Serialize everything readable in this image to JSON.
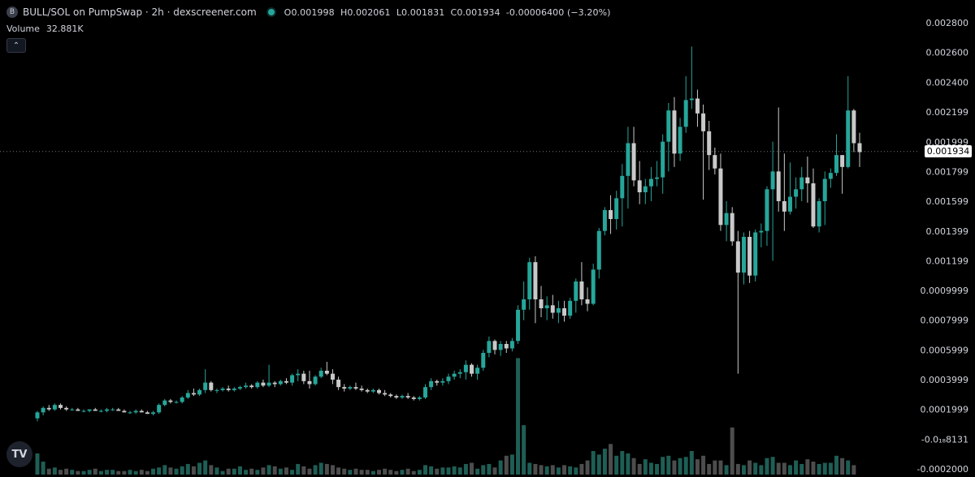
{
  "header": {
    "logo_letter": "B",
    "title": "BULL/SOL on PumpSwap · 2h · dexscreener.com",
    "o_label": "O",
    "o_value": "0.001998",
    "h_label": "H",
    "h_value": "0.002061",
    "l_label": "L",
    "l_value": "0.001831",
    "c_label": "C",
    "c_value": "0.001934",
    "change": "-0.00006400 (−3.20%)"
  },
  "volume": {
    "label": "Volume",
    "value": "32.881K"
  },
  "collapse_icon": "chevron-up-icon",
  "tv_logo_text": "TV",
  "colors": {
    "up": "#26a69a",
    "down": "#c9c9c9",
    "volume_up": "#1e5e55",
    "volume_down": "#4d4d4d",
    "background": "#000000"
  },
  "chart_data": {
    "type": "candlestick",
    "pair": "BULL/SOL",
    "interval": "2h",
    "ylim": [
      -0.0002,
      0.0028
    ],
    "y_ticks": [
      "0.002800",
      "0.002600",
      "0.002400",
      "0.002199",
      "0.001999",
      "0.001799",
      "0.001599",
      "0.001399",
      "0.001199",
      "0.0009999",
      "0.0007999",
      "0.0005999",
      "0.0003999",
      "0.0001999",
      "-0.0₁₈8131",
      "-0.0002000"
    ],
    "y_tick_values": [
      0.0028,
      0.0026,
      0.0024,
      0.002199,
      0.001999,
      0.001799,
      0.001599,
      0.001399,
      0.001199,
      0.0009999,
      0.0007999,
      0.0005999,
      0.0003999,
      0.0001999,
      0.0,
      -0.0002
    ],
    "last_price": 0.001934,
    "last_price_label": "0.001934",
    "candles": [
      [
        0.00014,
        0.00019,
        0.00012,
        0.00018
      ],
      [
        0.00018,
        0.00022,
        0.00016,
        0.00021
      ],
      [
        0.00021,
        0.00023,
        0.00019,
        0.0002
      ],
      [
        0.0002,
        0.00024,
        0.00019,
        0.00023
      ],
      [
        0.00023,
        0.00024,
        0.0002,
        0.00021
      ],
      [
        0.00021,
        0.00022,
        0.00019,
        0.0002
      ],
      [
        0.0002,
        0.00021,
        0.00019,
        0.0002
      ],
      [
        0.0002,
        0.00021,
        0.00019,
        0.00019
      ],
      [
        0.00019,
        0.0002,
        0.00018,
        0.00019
      ],
      [
        0.00019,
        0.0002,
        0.00018,
        0.0002
      ],
      [
        0.0002,
        0.00021,
        0.00019,
        0.00019
      ],
      [
        0.00019,
        0.0002,
        0.00018,
        0.00019
      ],
      [
        0.00019,
        0.00021,
        0.00018,
        0.0002
      ],
      [
        0.0002,
        0.00021,
        0.00019,
        0.0002
      ],
      [
        0.0002,
        0.00021,
        0.00019,
        0.00019
      ],
      [
        0.00019,
        0.0002,
        0.00018,
        0.00018
      ],
      [
        0.00018,
        0.00019,
        0.00017,
        0.00018
      ],
      [
        0.00018,
        0.0002,
        0.00017,
        0.00019
      ],
      [
        0.00019,
        0.0002,
        0.00018,
        0.00018
      ],
      [
        0.00018,
        0.00019,
        0.00017,
        0.00017
      ],
      [
        0.00017,
        0.00019,
        0.00016,
        0.00018
      ],
      [
        0.00018,
        0.00024,
        0.00017,
        0.00023
      ],
      [
        0.00023,
        0.00027,
        0.00022,
        0.00026
      ],
      [
        0.00026,
        0.00027,
        0.00024,
        0.00025
      ],
      [
        0.00025,
        0.00026,
        0.00024,
        0.00025
      ],
      [
        0.00025,
        0.00029,
        0.00024,
        0.00028
      ],
      [
        0.00028,
        0.00033,
        0.00027,
        0.00031
      ],
      [
        0.00031,
        0.00034,
        0.00029,
        0.0003
      ],
      [
        0.0003,
        0.00034,
        0.00029,
        0.00033
      ],
      [
        0.00033,
        0.00047,
        0.00031,
        0.00038
      ],
      [
        0.00038,
        0.00039,
        0.00032,
        0.00033
      ],
      [
        0.00033,
        0.00034,
        0.00031,
        0.00033
      ],
      [
        0.00033,
        0.00035,
        0.00032,
        0.00034
      ],
      [
        0.00034,
        0.00036,
        0.00032,
        0.00033
      ],
      [
        0.00033,
        0.00035,
        0.00032,
        0.00034
      ],
      [
        0.00034,
        0.00036,
        0.00033,
        0.00035
      ],
      [
        0.00035,
        0.00038,
        0.00034,
        0.00036
      ],
      [
        0.00036,
        0.00037,
        0.00034,
        0.00035
      ],
      [
        0.00035,
        0.00039,
        0.00034,
        0.00038
      ],
      [
        0.00038,
        0.0004,
        0.00035,
        0.00036
      ],
      [
        0.00036,
        0.0005,
        0.00035,
        0.00038
      ],
      [
        0.00038,
        0.00039,
        0.00035,
        0.00037
      ],
      [
        0.00037,
        0.0004,
        0.00036,
        0.00039
      ],
      [
        0.00039,
        0.00041,
        0.00037,
        0.00038
      ],
      [
        0.00038,
        0.00044,
        0.00036,
        0.00043
      ],
      [
        0.00043,
        0.00047,
        0.00039,
        0.00044
      ],
      [
        0.00044,
        0.00046,
        0.00037,
        0.00039
      ],
      [
        0.00039,
        0.00046,
        0.00034,
        0.00037
      ],
      [
        0.00037,
        0.00043,
        0.00036,
        0.00042
      ],
      [
        0.00042,
        0.00048,
        0.00041,
        0.00046
      ],
      [
        0.00046,
        0.00052,
        0.00043,
        0.00044
      ],
      [
        0.00044,
        0.00047,
        0.00037,
        0.0004
      ],
      [
        0.0004,
        0.00042,
        0.00033,
        0.00035
      ],
      [
        0.00035,
        0.00037,
        0.00032,
        0.00034
      ],
      [
        0.00034,
        0.00036,
        0.00033,
        0.00035
      ],
      [
        0.00035,
        0.00038,
        0.00033,
        0.00034
      ],
      [
        0.00034,
        0.00036,
        0.00032,
        0.00033
      ],
      [
        0.00033,
        0.00034,
        0.00031,
        0.00032
      ],
      [
        0.00032,
        0.00034,
        0.00031,
        0.00033
      ],
      [
        0.00033,
        0.00034,
        0.0003,
        0.00031
      ],
      [
        0.00031,
        0.00033,
        0.00029,
        0.0003
      ],
      [
        0.0003,
        0.00031,
        0.00028,
        0.00029
      ],
      [
        0.00029,
        0.0003,
        0.00027,
        0.00028
      ],
      [
        0.00028,
        0.0003,
        0.00027,
        0.00029
      ],
      [
        0.00029,
        0.00031,
        0.00027,
        0.00028
      ],
      [
        0.00028,
        0.00029,
        0.00026,
        0.00027
      ],
      [
        0.00027,
        0.00029,
        0.00026,
        0.00028
      ],
      [
        0.00028,
        0.00037,
        0.00027,
        0.00035
      ],
      [
        0.00035,
        0.00041,
        0.00033,
        0.00039
      ],
      [
        0.00039,
        0.0004,
        0.00036,
        0.00038
      ],
      [
        0.00038,
        0.00041,
        0.00036,
        0.00039
      ],
      [
        0.00039,
        0.00044,
        0.00037,
        0.00042
      ],
      [
        0.00042,
        0.00046,
        0.0004,
        0.00044
      ],
      [
        0.00044,
        0.00047,
        0.00041,
        0.00045
      ],
      [
        0.00045,
        0.00053,
        0.0004,
        0.0005
      ],
      [
        0.0005,
        0.00051,
        0.00042,
        0.00044
      ],
      [
        0.00044,
        0.0005,
        0.0004,
        0.00048
      ],
      [
        0.00048,
        0.0006,
        0.00046,
        0.00058
      ],
      [
        0.00058,
        0.00069,
        0.00055,
        0.00066
      ],
      [
        0.00066,
        0.00067,
        0.00057,
        0.0006
      ],
      [
        0.0006,
        0.00066,
        0.00056,
        0.00064
      ],
      [
        0.00064,
        0.00066,
        0.00058,
        0.00061
      ],
      [
        0.00061,
        0.00068,
        0.00059,
        0.00066
      ],
      [
        0.00066,
        0.0009,
        0.00064,
        0.00087
      ],
      [
        0.00087,
        0.00106,
        0.0008,
        0.00094
      ],
      [
        0.00094,
        0.00122,
        0.00087,
        0.00119
      ],
      [
        0.00119,
        0.00123,
        0.00078,
        0.00094
      ],
      [
        0.00094,
        0.00103,
        0.00082,
        0.00088
      ],
      [
        0.00088,
        0.00096,
        0.0008,
        0.0009
      ],
      [
        0.0009,
        0.00097,
        0.00081,
        0.00085
      ],
      [
        0.00085,
        0.00093,
        0.00078,
        0.00088
      ],
      [
        0.00088,
        0.00093,
        0.00079,
        0.00083
      ],
      [
        0.00083,
        0.00095,
        0.00081,
        0.00093
      ],
      [
        0.00093,
        0.00108,
        0.00085,
        0.00106
      ],
      [
        0.00106,
        0.00119,
        0.0009,
        0.00094
      ],
      [
        0.00094,
        0.00102,
        0.00086,
        0.00091
      ],
      [
        0.00091,
        0.00118,
        0.0009,
        0.00114
      ],
      [
        0.00114,
        0.00142,
        0.00108,
        0.0014
      ],
      [
        0.0014,
        0.00156,
        0.00137,
        0.00154
      ],
      [
        0.00154,
        0.00164,
        0.00138,
        0.00148
      ],
      [
        0.00148,
        0.00167,
        0.00141,
        0.00162
      ],
      [
        0.00162,
        0.00185,
        0.00143,
        0.00177
      ],
      [
        0.00177,
        0.0021,
        0.00155,
        0.00199
      ],
      [
        0.00199,
        0.0021,
        0.0017,
        0.00174
      ],
      [
        0.00174,
        0.00187,
        0.00158,
        0.00166
      ],
      [
        0.00166,
        0.00175,
        0.00158,
        0.0017
      ],
      [
        0.0017,
        0.00183,
        0.0016,
        0.00175
      ],
      [
        0.00175,
        0.00187,
        0.0017,
        0.00176
      ],
      [
        0.00176,
        0.00205,
        0.00165,
        0.002
      ],
      [
        0.002,
        0.00226,
        0.0018,
        0.00221
      ],
      [
        0.00221,
        0.0023,
        0.00183,
        0.00192
      ],
      [
        0.00192,
        0.00216,
        0.00187,
        0.0021
      ],
      [
        0.0021,
        0.00244,
        0.00206,
        0.00228
      ],
      [
        0.00228,
        0.00264,
        0.00222,
        0.00229
      ],
      [
        0.00229,
        0.00235,
        0.0021,
        0.00219
      ],
      [
        0.00219,
        0.00225,
        0.00161,
        0.00207
      ],
      [
        0.00207,
        0.00214,
        0.00181,
        0.00191
      ],
      [
        0.00191,
        0.00196,
        0.00178,
        0.00182
      ],
      [
        0.00182,
        0.00192,
        0.0014,
        0.00144
      ],
      [
        0.00144,
        0.0016,
        0.00133,
        0.00152
      ],
      [
        0.00152,
        0.00156,
        0.0013,
        0.00133
      ],
      [
        0.00133,
        0.0014,
        0.00044,
        0.00112
      ],
      [
        0.00112,
        0.00139,
        0.00104,
        0.00136
      ],
      [
        0.00136,
        0.0014,
        0.00105,
        0.0011
      ],
      [
        0.0011,
        0.00141,
        0.00106,
        0.00139
      ],
      [
        0.00139,
        0.00145,
        0.00129,
        0.0014
      ],
      [
        0.0014,
        0.0017,
        0.0013,
        0.00168
      ],
      [
        0.00168,
        0.002,
        0.0012,
        0.0018
      ],
      [
        0.0018,
        0.00223,
        0.00153,
        0.0016
      ],
      [
        0.0016,
        0.00192,
        0.0014,
        0.00153
      ],
      [
        0.00153,
        0.00186,
        0.00151,
        0.00163
      ],
      [
        0.00163,
        0.00176,
        0.00155,
        0.00168
      ],
      [
        0.00168,
        0.00183,
        0.0016,
        0.00176
      ],
      [
        0.00176,
        0.0019,
        0.00159,
        0.00172
      ],
      [
        0.00172,
        0.00182,
        0.00142,
        0.00143
      ],
      [
        0.00143,
        0.00162,
        0.00139,
        0.0016
      ],
      [
        0.0016,
        0.0018,
        0.00144,
        0.00175
      ],
      [
        0.00175,
        0.00182,
        0.00169,
        0.00179
      ],
      [
        0.00179,
        0.00205,
        0.00177,
        0.00191
      ],
      [
        0.00191,
        0.00191,
        0.00165,
        0.00183
      ],
      [
        0.00183,
        0.00244,
        0.00182,
        0.00221
      ],
      [
        0.00221,
        0.00222,
        0.00193,
        0.00199
      ],
      [
        0.00199,
        0.00206,
        0.00183,
        0.00193
      ]
    ],
    "volumes": [
      0.18,
      0.11,
      0.05,
      0.06,
      0.04,
      0.05,
      0.04,
      0.03,
      0.03,
      0.04,
      0.05,
      0.03,
      0.04,
      0.04,
      0.03,
      0.03,
      0.04,
      0.03,
      0.04,
      0.03,
      0.05,
      0.06,
      0.08,
      0.06,
      0.05,
      0.07,
      0.09,
      0.07,
      0.1,
      0.12,
      0.08,
      0.06,
      0.03,
      0.05,
      0.05,
      0.07,
      0.04,
      0.05,
      0.04,
      0.06,
      0.08,
      0.07,
      0.05,
      0.06,
      0.04,
      0.09,
      0.07,
      0.05,
      0.08,
      0.1,
      0.09,
      0.08,
      0.06,
      0.05,
      0.04,
      0.05,
      0.04,
      0.04,
      0.03,
      0.04,
      0.05,
      0.04,
      0.03,
      0.04,
      0.05,
      0.03,
      0.04,
      0.08,
      0.07,
      0.05,
      0.06,
      0.06,
      0.07,
      0.06,
      0.09,
      0.1,
      0.05,
      0.08,
      0.09,
      0.06,
      0.12,
      0.16,
      0.17,
      0.99,
      0.42,
      0.1,
      0.09,
      0.08,
      0.07,
      0.08,
      0.06,
      0.08,
      0.07,
      0.06,
      0.09,
      0.12,
      0.2,
      0.17,
      0.22,
      0.26,
      0.16,
      0.2,
      0.18,
      0.14,
      0.09,
      0.13,
      0.1,
      0.09,
      0.15,
      0.16,
      0.12,
      0.14,
      0.15,
      0.2,
      0.13,
      0.16,
      0.09,
      0.12,
      0.12,
      0.08,
      0.4,
      0.09,
      0.08,
      0.12,
      0.1,
      0.08,
      0.14,
      0.15,
      0.1,
      0.1,
      0.08,
      0.12,
      0.09,
      0.13,
      0.11,
      0.09,
      0.1,
      0.1,
      0.16,
      0.14,
      0.12,
      0.08
    ]
  }
}
